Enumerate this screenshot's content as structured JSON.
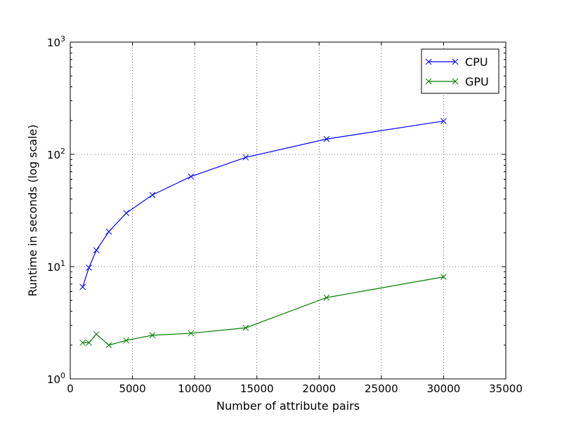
{
  "chart_data": {
    "type": "line",
    "title": "",
    "xlabel": "Number of attribute pairs",
    "ylabel": "Runtime in seconds (log scale)",
    "xlim": [
      0,
      35000
    ],
    "ylim": [
      1,
      1000
    ],
    "yscale": "log",
    "grid": true,
    "legend_position": "top-right",
    "x_ticks": [
      0,
      5000,
      10000,
      15000,
      20000,
      25000,
      30000,
      35000
    ],
    "x_tick_labels": [
      "0",
      "5000",
      "10000",
      "15000",
      "20000",
      "25000",
      "30000",
      "35000"
    ],
    "y_ticks": [
      1,
      10,
      100,
      1000
    ],
    "y_tick_labels": [
      {
        "base": "10",
        "exp": "0"
      },
      {
        "base": "10",
        "exp": "1"
      },
      {
        "base": "10",
        "exp": "2"
      },
      {
        "base": "10",
        "exp": "3"
      }
    ],
    "series": [
      {
        "name": "CPU",
        "color": "#0000ff",
        "marker": "x",
        "x": [
          1000,
          1500,
          2100,
          3100,
          4500,
          6600,
          9700,
          14100,
          20600,
          30000
        ],
        "y": [
          6.6,
          9.8,
          14.0,
          20.5,
          30.0,
          43.5,
          63.5,
          94.0,
          137.0,
          198.0
        ]
      },
      {
        "name": "GPU",
        "color": "#008000",
        "marker": "x",
        "x": [
          1000,
          1500,
          2100,
          3100,
          4500,
          6600,
          9700,
          14100,
          20600,
          30000
        ],
        "y": [
          2.1,
          2.1,
          2.5,
          2.0,
          2.2,
          2.45,
          2.55,
          2.85,
          5.3,
          8.1
        ]
      }
    ]
  }
}
